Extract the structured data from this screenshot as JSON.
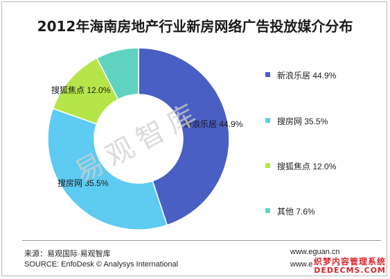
{
  "title": "2012年海南房地产行业新房网络广告投放媒介分布",
  "chart_data": {
    "type": "pie",
    "donut": true,
    "title": "2012年海南房地产行业新房网络广告投放媒介分布",
    "legend_position": "right",
    "slices": [
      {
        "name": "新浪乐居",
        "value": 44.9,
        "label": "44.9%",
        "color": "#4a5fc4"
      },
      {
        "name": "搜房网",
        "value": 35.5,
        "label": "35.5%",
        "color": "#5ecbf2"
      },
      {
        "name": "搜狐焦点",
        "value": 12.0,
        "label": "12.0%",
        "color": "#b6e54a"
      },
      {
        "name": "其他",
        "value": 7.6,
        "label": "7.6%",
        "color": "#5fd3c0"
      }
    ]
  },
  "watermark": "易观智库",
  "footer": {
    "source_cn": "来源：易观国际·易观智库",
    "source_en": "SOURCE: EnfoDesk © Analysys International",
    "site": "www.eguan.cn",
    "site2": "www.e",
    "logo_line1": "织梦内容管理系统",
    "logo_line2": "DEDECMS.COM"
  }
}
